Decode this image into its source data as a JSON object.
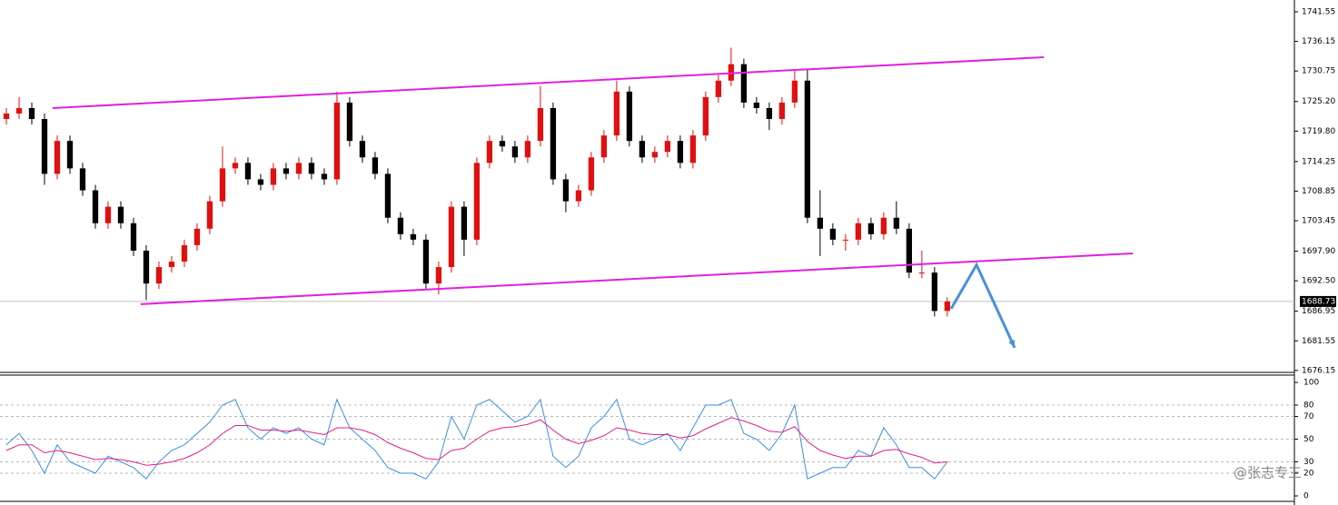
{
  "chart_data": [
    {
      "type": "candlestick",
      "xlim": [
        -0.5,
        101.3
      ],
      "ylim": [
        1675.8,
        1743.7
      ],
      "yticks": [
        1741.55,
        1736.15,
        1730.75,
        {
          "value": 1725.2,
          "label": "1725.20"
        },
        {
          "value": 1719.8,
          "label": "1719.80"
        },
        1714.25,
        1708.85,
        1703.45,
        {
          "value": 1697.9,
          "label": "1697.90"
        },
        {
          "value": 1692.5,
          "label": "1692.50"
        },
        1686.95,
        1681.55,
        1676.15
      ],
      "up_color": "#e01010",
      "down_color": "#000000",
      "open": [
        1722,
        1723,
        1724,
        1722,
        1712,
        1718,
        1713,
        1709,
        1703,
        1706,
        1703,
        1698,
        1692,
        1695,
        1696,
        1699,
        1702,
        1707,
        1713,
        1714,
        1711,
        1710,
        1713,
        1712,
        1714,
        1712,
        1711,
        1725,
        1718,
        1715,
        1712,
        1704,
        1701,
        1700,
        1692,
        1695,
        1706,
        1700,
        1714,
        1718,
        1717,
        1715,
        1718,
        1724,
        1711,
        1707,
        1709,
        1715,
        1719,
        1727,
        1718,
        1715,
        1716,
        1718,
        1714,
        1719,
        1726,
        1729,
        1732,
        1725,
        1724,
        1722,
        1725,
        1729,
        1704,
        1702,
        1700,
        1700,
        1703,
        1701,
        1704,
        1702,
        1694,
        1694,
        1687
      ],
      "high": [
        1724,
        1726,
        1725,
        1723,
        1719,
        1719,
        1714,
        1710,
        1707,
        1707,
        1704,
        1699,
        1696,
        1697,
        1700,
        1703,
        1708,
        1717,
        1715,
        1715,
        1712,
        1714,
        1714,
        1715,
        1715,
        1713,
        1727,
        1726,
        1719,
        1716,
        1713,
        1705,
        1702,
        1701,
        1696,
        1707,
        1707,
        1715,
        1719,
        1719,
        1718,
        1719,
        1728,
        1725,
        1712,
        1710,
        1716,
        1720,
        1729,
        1728,
        1719,
        1717,
        1719,
        1719,
        1720,
        1727,
        1730,
        1735,
        1733,
        1726,
        1725,
        1726,
        1731,
        1731,
        1709,
        1703,
        1701,
        1704,
        1704,
        1705,
        1707,
        1703,
        1698,
        1695,
        1689.5
      ],
      "low": [
        1721,
        1722,
        1721,
        1710,
        1711,
        1712,
        1708,
        1702,
        1702,
        1702,
        1697,
        1689,
        1691,
        1694,
        1695,
        1698,
        1701,
        1706,
        1712,
        1710,
        1709,
        1709,
        1711,
        1711,
        1711,
        1710,
        1710,
        1717,
        1714,
        1711,
        1703,
        1700,
        1699,
        1691,
        1690,
        1694,
        1697,
        1699,
        1713,
        1716,
        1714,
        1714,
        1717,
        1710,
        1705,
        1706,
        1708,
        1714,
        1718,
        1717,
        1714,
        1714,
        1715,
        1713,
        1713,
        1718,
        1725,
        1728,
        1724,
        1723,
        1720,
        1721,
        1724,
        1703,
        1697,
        1699,
        1698,
        1699,
        1700,
        1700,
        1701,
        1693,
        1693,
        1686,
        1686
      ],
      "close": [
        1723,
        1724,
        1722,
        1712,
        1718,
        1713,
        1709,
        1703,
        1706,
        1703,
        1698,
        1692,
        1695,
        1696,
        1699,
        1702,
        1707,
        1713,
        1714,
        1711,
        1710,
        1713,
        1712,
        1714,
        1712,
        1711,
        1725,
        1718,
        1715,
        1712,
        1704,
        1701,
        1700,
        1692,
        1695,
        1706,
        1700,
        1714,
        1718,
        1717,
        1715,
        1718,
        1724,
        1711,
        1707,
        1709,
        1715,
        1719,
        1727,
        1718,
        1715,
        1716,
        1718,
        1714,
        1719,
        1726,
        1729,
        1732,
        1725,
        1724,
        1722,
        1725,
        1729,
        1704,
        1702,
        1700,
        1700,
        1703,
        1701,
        1704,
        1702,
        1694,
        1694,
        1687,
        1688.73
      ],
      "last_price": 1688.73,
      "lines": [
        {
          "color": "#e020e0",
          "x": [
            3.64,
            81.6
          ],
          "y": [
            1724.0,
            1733.27
          ]
        },
        {
          "color": "#e020e0",
          "x": [
            10.57,
            88.6
          ],
          "y": [
            1688.24,
            1697.5
          ]
        }
      ],
      "arrow": {
        "color": "#4a90d9",
        "x": [
          74.3,
          76.3,
          79.3
        ],
        "y": [
          1687.4,
          1695.4,
          1680.3
        ]
      }
    },
    {
      "type": "line",
      "xlim": [
        -0.5,
        101.3
      ],
      "ylim": [
        0,
        100
      ],
      "yticks": [
        100,
        80,
        70,
        50,
        30,
        20,
        0
      ],
      "grid": true,
      "watermark": "@张志专三",
      "series": [
        {
          "color": "#3a8ee6",
          "values": [
            45,
            55,
            40,
            20,
            45,
            30,
            25,
            20,
            35,
            30,
            25,
            15,
            30,
            40,
            45,
            55,
            65,
            80,
            85,
            60,
            50,
            60,
            55,
            60,
            50,
            45,
            85,
            60,
            50,
            40,
            25,
            20,
            20,
            15,
            30,
            70,
            50,
            80,
            85,
            75,
            65,
            70,
            85,
            35,
            25,
            35,
            60,
            70,
            85,
            50,
            45,
            50,
            55,
            40,
            60,
            80,
            80,
            85,
            55,
            50,
            40,
            55,
            80,
            15,
            20,
            25,
            25,
            40,
            35,
            60,
            45,
            25,
            25,
            15,
            30
          ]
        },
        {
          "color": "#e0208a",
          "values": [
            40,
            45,
            45,
            38,
            40,
            38,
            35,
            32,
            33,
            32,
            30,
            27,
            28,
            30,
            33,
            38,
            45,
            55,
            62,
            62,
            58,
            58,
            57,
            58,
            56,
            54,
            60,
            60,
            58,
            54,
            47,
            42,
            38,
            33,
            32,
            40,
            42,
            50,
            57,
            60,
            61,
            63,
            67,
            58,
            50,
            46,
            49,
            53,
            60,
            58,
            55,
            54,
            54,
            51,
            53,
            59,
            64,
            69,
            66,
            62,
            57,
            56,
            61,
            48,
            40,
            36,
            33,
            35,
            35,
            40,
            41,
            37,
            34,
            29,
            30
          ]
        }
      ]
    }
  ]
}
